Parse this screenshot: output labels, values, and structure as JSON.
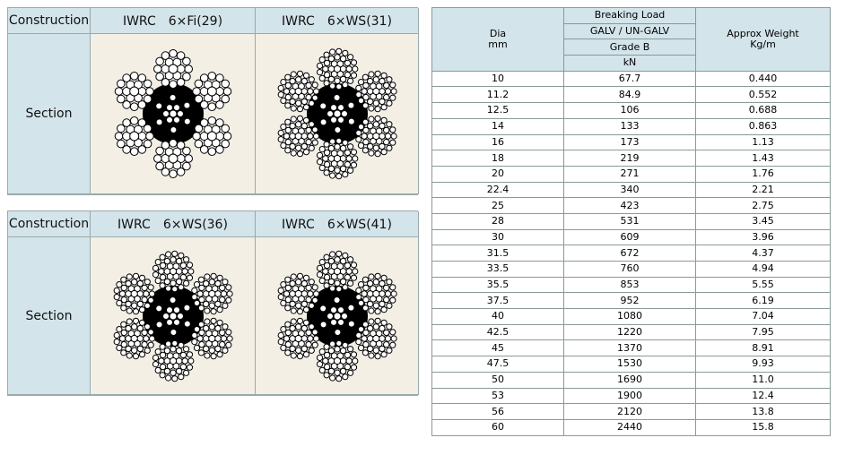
{
  "panels": [
    {
      "header": "Construction",
      "columns": [
        "IWRC　6×Fi(29)",
        "IWRC　6×WS(31)"
      ],
      "row_label": "Section"
    },
    {
      "header": "Construction",
      "columns": [
        "IWRC　6×WS(36)",
        "IWRC　6×WS(41)"
      ],
      "row_label": "Section"
    }
  ],
  "table": {
    "header": {
      "dia": "Dia\nmm",
      "breaking_load": "Breaking Load",
      "galv": "GALV / UN-GALV",
      "grade": "Grade B",
      "unit": "kN",
      "weight": "Approx Weight\nKg/m"
    },
    "rows": [
      [
        "10",
        "67.7",
        "0.440"
      ],
      [
        "11.2",
        "84.9",
        "0.552"
      ],
      [
        "12.5",
        "106",
        "0.688"
      ],
      [
        "14",
        "133",
        "0.863"
      ],
      [
        "16",
        "173",
        "1.13"
      ],
      [
        "18",
        "219",
        "1.43"
      ],
      [
        "20",
        "271",
        "1.76"
      ],
      [
        "22.4",
        "340",
        "2.21"
      ],
      [
        "25",
        "423",
        "2.75"
      ],
      [
        "28",
        "531",
        "3.45"
      ],
      [
        "30",
        "609",
        "3.96"
      ],
      [
        "31.5",
        "672",
        "4.37"
      ],
      [
        "33.5",
        "760",
        "4.94"
      ],
      [
        "35.5",
        "853",
        "5.55"
      ],
      [
        "37.5",
        "952",
        "6.19"
      ],
      [
        "40",
        "1080",
        "7.04"
      ],
      [
        "42.5",
        "1220",
        "7.95"
      ],
      [
        "45",
        "1370",
        "8.91"
      ],
      [
        "47.5",
        "1530",
        "9.93"
      ],
      [
        "50",
        "1690",
        "11.0"
      ],
      [
        "53",
        "1900",
        "12.4"
      ],
      [
        "56",
        "2120",
        "13.8"
      ],
      [
        "60",
        "2440",
        "15.8"
      ]
    ]
  }
}
